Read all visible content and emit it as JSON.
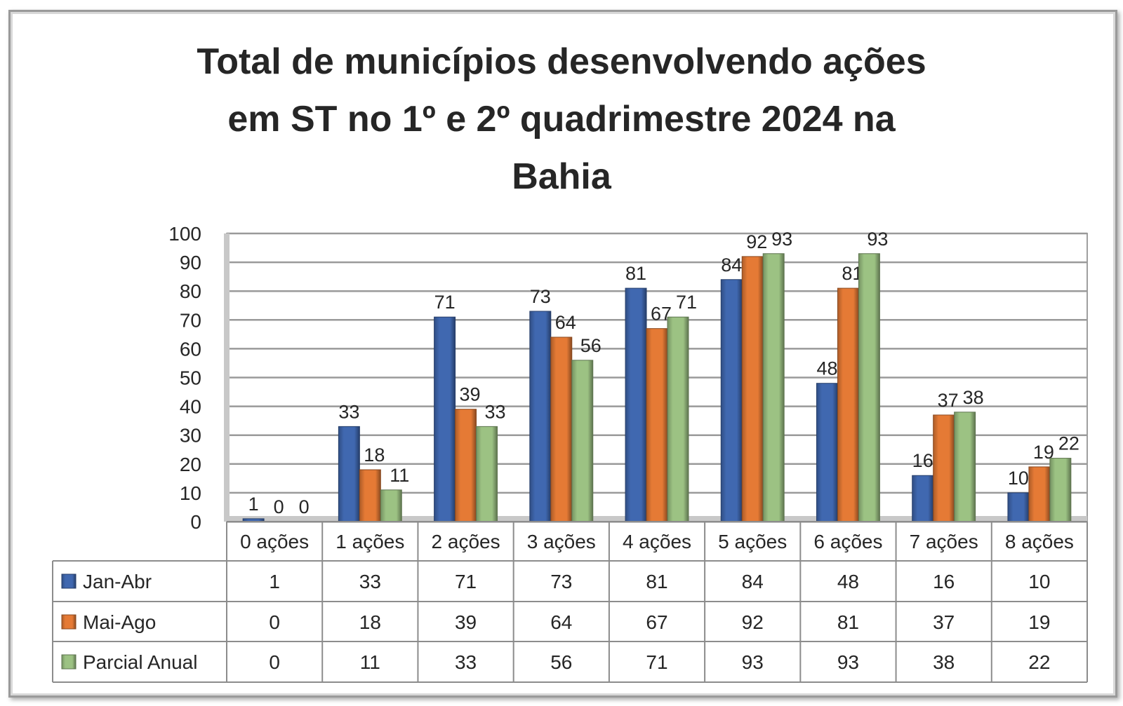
{
  "chart_data": {
    "type": "bar",
    "title_lines": [
      "Total de municípios desenvolvendo ações",
      "em ST no 1º e 2º quadrimestre 2024 na",
      "Bahia"
    ],
    "categories": [
      "0 ações",
      "1 ações",
      "2 ações",
      "3 ações",
      "4 ações",
      "5 ações",
      "6 ações",
      "7 ações",
      "8 ações"
    ],
    "series": [
      {
        "name": "Jan-Abr",
        "color": "#4068b0",
        "values": [
          1,
          33,
          71,
          73,
          81,
          84,
          48,
          16,
          10
        ]
      },
      {
        "name": "Mai-Ago",
        "color": "#e57a35",
        "values": [
          0,
          18,
          39,
          64,
          67,
          92,
          81,
          37,
          19
        ]
      },
      {
        "name": "Parcial Anual",
        "color": "#9cc283",
        "values": [
          0,
          11,
          33,
          56,
          71,
          93,
          93,
          38,
          22
        ]
      }
    ],
    "ylim": [
      0,
      100
    ],
    "yticks": [
      0,
      10,
      20,
      30,
      40,
      50,
      60,
      70,
      80,
      90,
      100
    ],
    "grid": true,
    "legend": "data-table-below",
    "xlabel": "",
    "ylabel": ""
  }
}
